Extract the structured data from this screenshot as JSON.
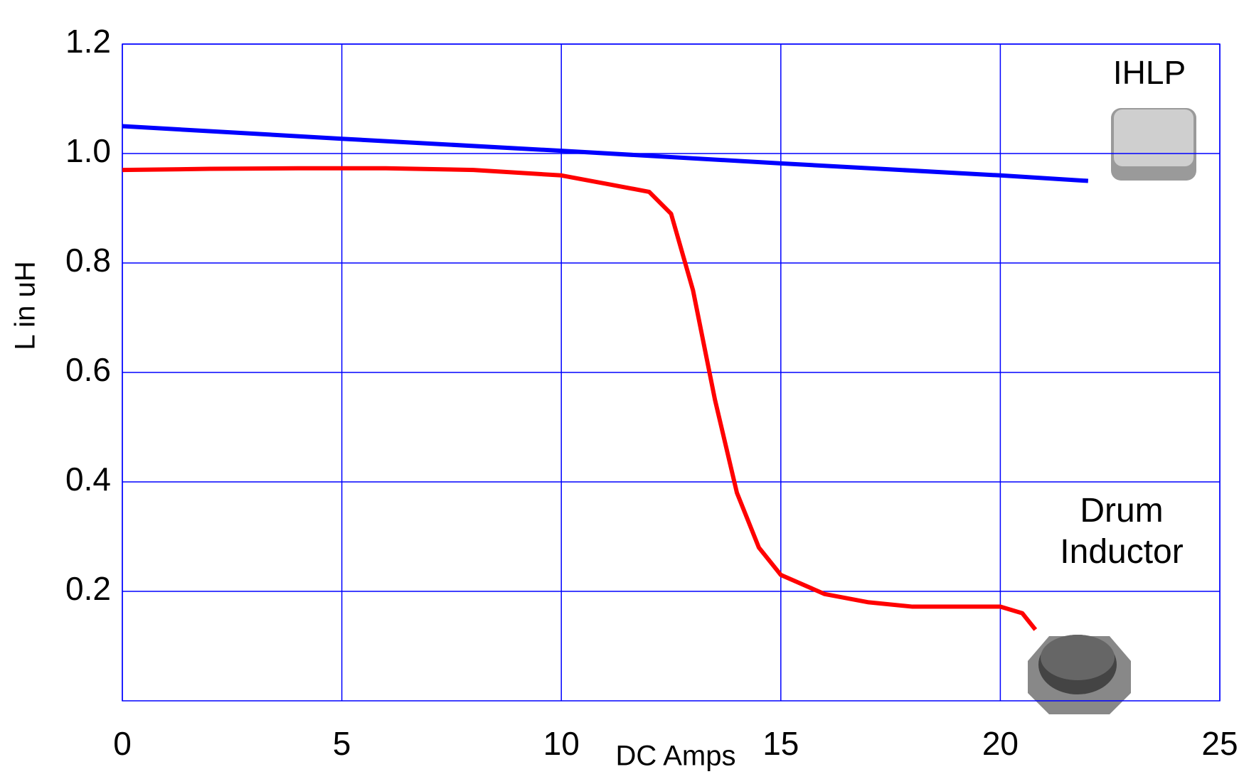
{
  "chart_data": {
    "type": "line",
    "xlabel": "DC Amps",
    "ylabel": "L in uH",
    "xlim": [
      0,
      25
    ],
    "xticks": [
      0,
      5,
      10,
      15,
      20,
      25
    ],
    "ylim": [
      0,
      1.2
    ],
    "yticks": [
      0.2,
      0.4,
      0.6,
      0.8,
      {
        "value": 1,
        "label": "1.0"
      },
      1.2
    ],
    "grid": true,
    "series": [
      {
        "name": "IHLP",
        "color": "#0000ff",
        "x": [
          0,
          5,
          10,
          15,
          20,
          22
        ],
        "values": [
          1.05,
          1.027,
          1.005,
          0.982,
          0.96,
          0.95
        ]
      },
      {
        "name": "Drum Inductor",
        "color": "#ff0000",
        "x": [
          0,
          2,
          4,
          6,
          8,
          10,
          11,
          12,
          12.5,
          13,
          13.5,
          14,
          14.5,
          15,
          16,
          17,
          18,
          19,
          20,
          20.5,
          20.8
        ],
        "values": [
          0.97,
          0.972,
          0.973,
          0.973,
          0.97,
          0.96,
          0.945,
          0.93,
          0.89,
          0.75,
          0.55,
          0.38,
          0.28,
          0.23,
          0.195,
          0.18,
          0.172,
          0.172,
          0.172,
          0.16,
          0.13
        ]
      }
    ]
  }
}
